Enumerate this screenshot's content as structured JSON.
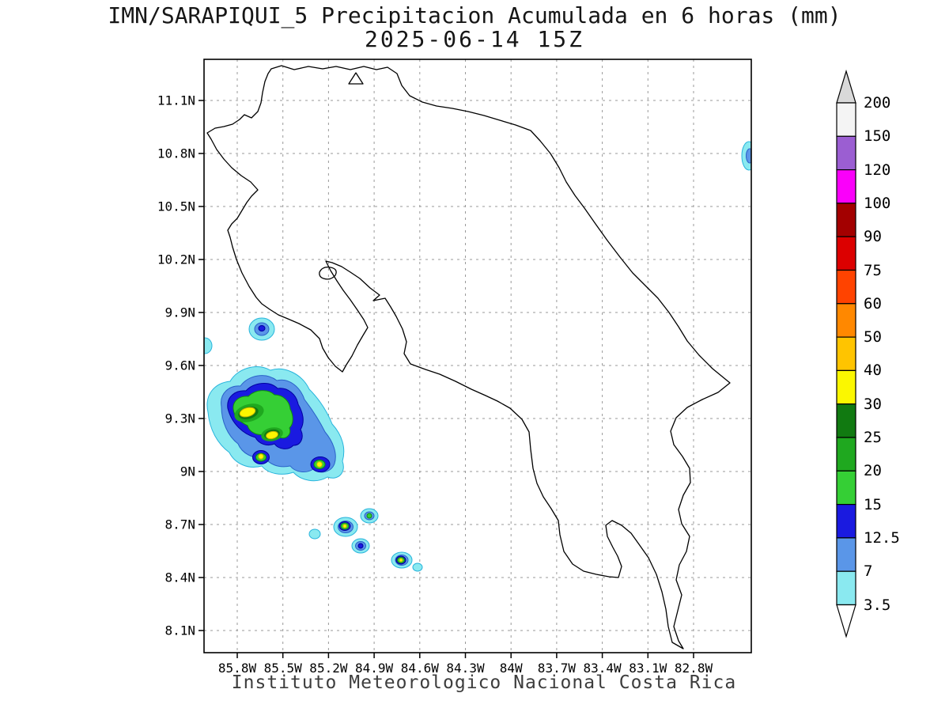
{
  "title": {
    "line1": "IMN/SARAPIQUI_5 Precipitacion Acumulada en 6 horas (mm)",
    "line2": "2025-06-14 15Z"
  },
  "footer": "Instituto Meteorologico Nacional Costa Rica",
  "chart_data": {
    "type": "heatmap",
    "title": "IMN/SARAPIQUI_5 Precipitacion Acumulada en 6 horas (mm)",
    "subtitle": "2025-06-14 15Z",
    "units": "mm",
    "map_region": "Costa Rica",
    "grid": "dashed",
    "lat_tick_labels": [
      "11.1N",
      "10.8N",
      "10.5N",
      "10.2N",
      "9.9N",
      "9.6N",
      "9.3N",
      "9N",
      "8.7N",
      "8.4N",
      "8.1N"
    ],
    "lon_tick_labels": [
      "85.8W",
      "85.5W",
      "85.2W",
      "84.9W",
      "84.6W",
      "84.3W",
      "84W",
      "83.7W",
      "83.4W",
      "83.1W",
      "82.8W"
    ],
    "lon_range_deg_west": [
      86.02,
      82.42
    ],
    "lat_range_deg_north": [
      7.97,
      11.33
    ],
    "colorbar": {
      "position": "right",
      "labels_top_to_bottom": [
        "200",
        "150",
        "120",
        "100",
        "90",
        "75",
        "60",
        "50",
        "40",
        "30",
        "25",
        "20",
        "15",
        "12.5",
        "7",
        "3.5"
      ],
      "levels_mm": [
        3.5,
        7,
        12.5,
        15,
        20,
        25,
        30,
        40,
        50,
        60,
        75,
        90,
        100,
        120,
        150,
        200
      ],
      "band_colors_top_to_bottom": [
        "#f4f4f4",
        "#9b5ed2",
        "#fa00fa",
        "#a30000",
        "#dc0000",
        "#ff4300",
        "#ff8800",
        "#ffc400",
        "#fbf700",
        "#117a11",
        "#1fa81f",
        "#35cf35",
        "#1a1ae0",
        "#5a96e8",
        "#8ae9f0"
      ],
      "arrow_top_color": "#d9d9d9",
      "arrow_bottom_color": "#ffffff"
    },
    "palette": {
      "c3p5": "#8ae9f0",
      "c7": "#5a96e8",
      "c12p5": "#1a1ae0",
      "c15": "#35cf35",
      "c20": "#1fa81f",
      "c25": "#117a11",
      "c30": "#fbf700"
    },
    "precipitation_features": [
      {
        "label": "main convective cluster",
        "approx_center": "85.57W 9.30N",
        "peak_band_mm": "30-40"
      },
      {
        "label": "small cell NW of cluster",
        "approx_center": "85.64W 9.81N",
        "peak_band_mm": "12.5-15"
      },
      {
        "label": "coastal speck at left edge",
        "approx_center": "86.0W 9.71N",
        "peak_band_mm": "3.5-7"
      },
      {
        "label": "cell",
        "approx_center": "85.09W 8.69N",
        "peak_band_mm": "30-40"
      },
      {
        "label": "cell",
        "approx_center": "84.93W 8.75N",
        "peak_band_mm": "15-20"
      },
      {
        "label": "cell",
        "approx_center": "85.29W 8.65N",
        "peak_band_mm": "3.5-7"
      },
      {
        "label": "cell",
        "approx_center": "84.99W 8.58N",
        "peak_band_mm": "12.5-15"
      },
      {
        "label": "cell",
        "approx_center": "84.72W 8.50N",
        "peak_band_mm": "30-40"
      },
      {
        "label": "small speck",
        "approx_center": "84.61W 8.46N",
        "peak_band_mm": "3.5-7"
      },
      {
        "label": "Caribbean edge cell",
        "approx_center": "82.44W 10.79N",
        "peak_band_mm": "7-12.5"
      }
    ]
  }
}
